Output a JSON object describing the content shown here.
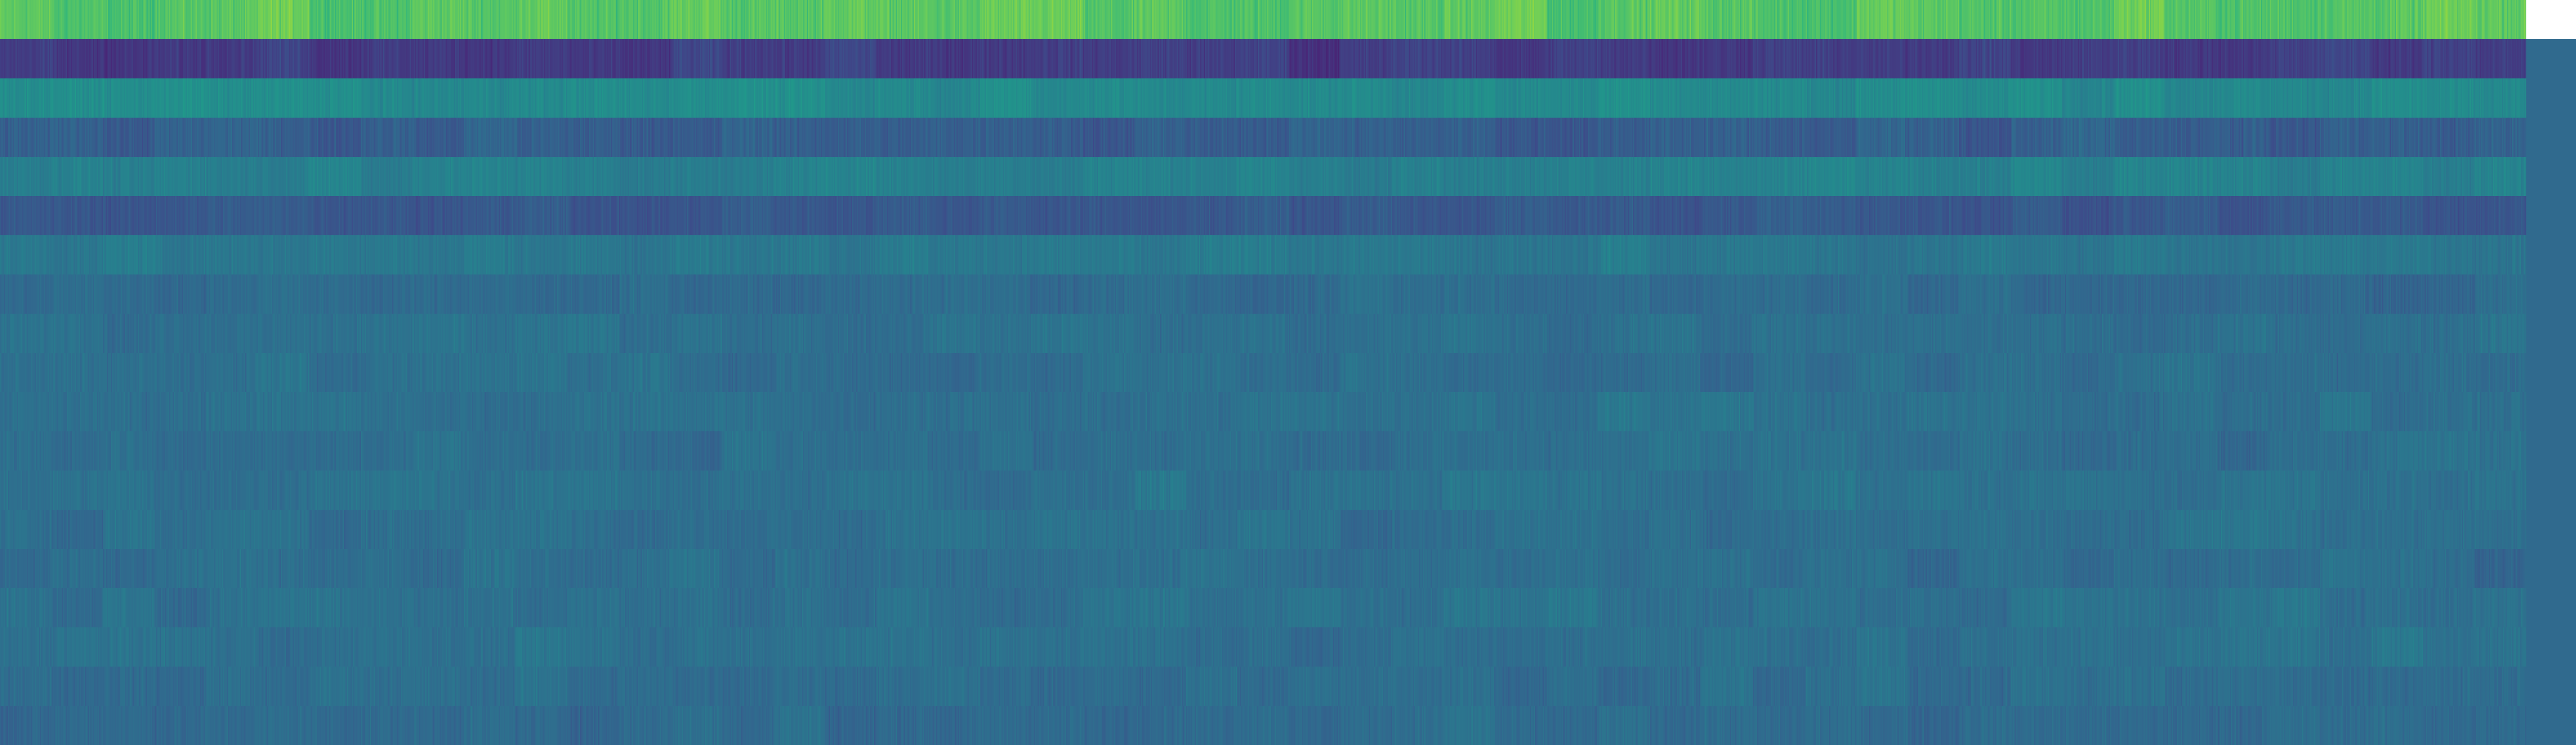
{
  "chart_data": {
    "type": "heatmap",
    "title": "",
    "xlabel": "",
    "ylabel": "",
    "axes_visible": false,
    "grid": false,
    "legend": "none",
    "colormap": "viridis",
    "colormap_stops": [
      "#440154",
      "#482878",
      "#3e4989",
      "#31688e",
      "#26828e",
      "#1f9e89",
      "#35b779",
      "#6ece58",
      "#b5de2b",
      "#fde725"
    ],
    "value_range": [
      0,
      1
    ],
    "n_rows": 19,
    "n_columns_approx": 1960,
    "row_mean_values": [
      0.74,
      0.18,
      0.48,
      0.3,
      0.44,
      0.28,
      0.4,
      0.35,
      0.37,
      0.36,
      0.37,
      0.36,
      0.37,
      0.37,
      0.36,
      0.37,
      0.37,
      0.36,
      0.35
    ],
    "row_value_spread": [
      0.07,
      0.06,
      0.05,
      0.06,
      0.05,
      0.05,
      0.05,
      0.05,
      0.05,
      0.05,
      0.05,
      0.05,
      0.05,
      0.05,
      0.05,
      0.05,
      0.05,
      0.05,
      0.05
    ],
    "last_column_block_value": 0.34
  }
}
